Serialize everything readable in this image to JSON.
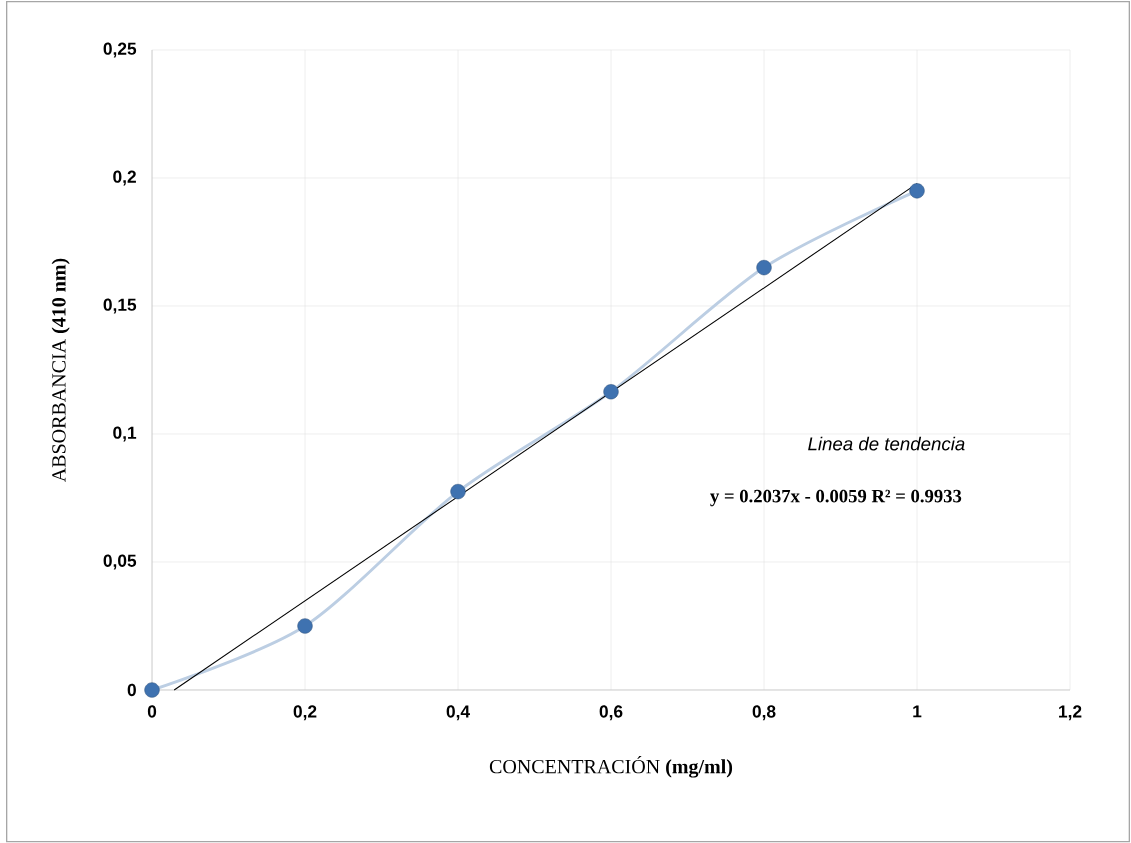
{
  "chart_data": {
    "type": "line",
    "xlabel": "CONCENTRACIÓN **(mg/ml)**",
    "ylabel": "ABSORBANCIA **(410  nm)**",
    "xlim": [
      0,
      1.2
    ],
    "ylim": [
      0,
      0.25
    ],
    "xticks": [
      0,
      {
        "value": 0.2,
        "label": "0,2"
      },
      {
        "value": 0.4,
        "label": "0,4"
      },
      {
        "value": 0.6,
        "label": "0,6"
      },
      {
        "value": 0.8,
        "label": "0,8"
      },
      1,
      {
        "value": 1.2,
        "label": "1,2"
      }
    ],
    "yticks": [
      0,
      {
        "value": 0.05,
        "label": "0,05"
      },
      {
        "value": 0.1,
        "label": "0,1"
      },
      {
        "value": 0.15,
        "label": "0,15"
      },
      {
        "value": 0.2,
        "label": "0,2"
      },
      {
        "value": 0.25,
        "label": "0,25"
      }
    ],
    "grid": true,
    "series": [
      {
        "x": [
          0,
          0.2,
          0.4,
          0.6,
          0.8,
          1.0
        ],
        "values": [
          0,
          0.025,
          0.0775,
          0.1165,
          0.165,
          0.195
        ],
        "color": "#3f72b0",
        "marker": "circle"
      },
      {
        "x": [
          0.029,
          1.0
        ],
        "values": [
          0,
          0.1978
        ],
        "color": "#000000",
        "marker": "none"
      }
    ],
    "annotations": [
      "*Linea* de tendencia",
      "**y = 0.2037x - 0.0059 R² = 0.9933**"
    ]
  }
}
